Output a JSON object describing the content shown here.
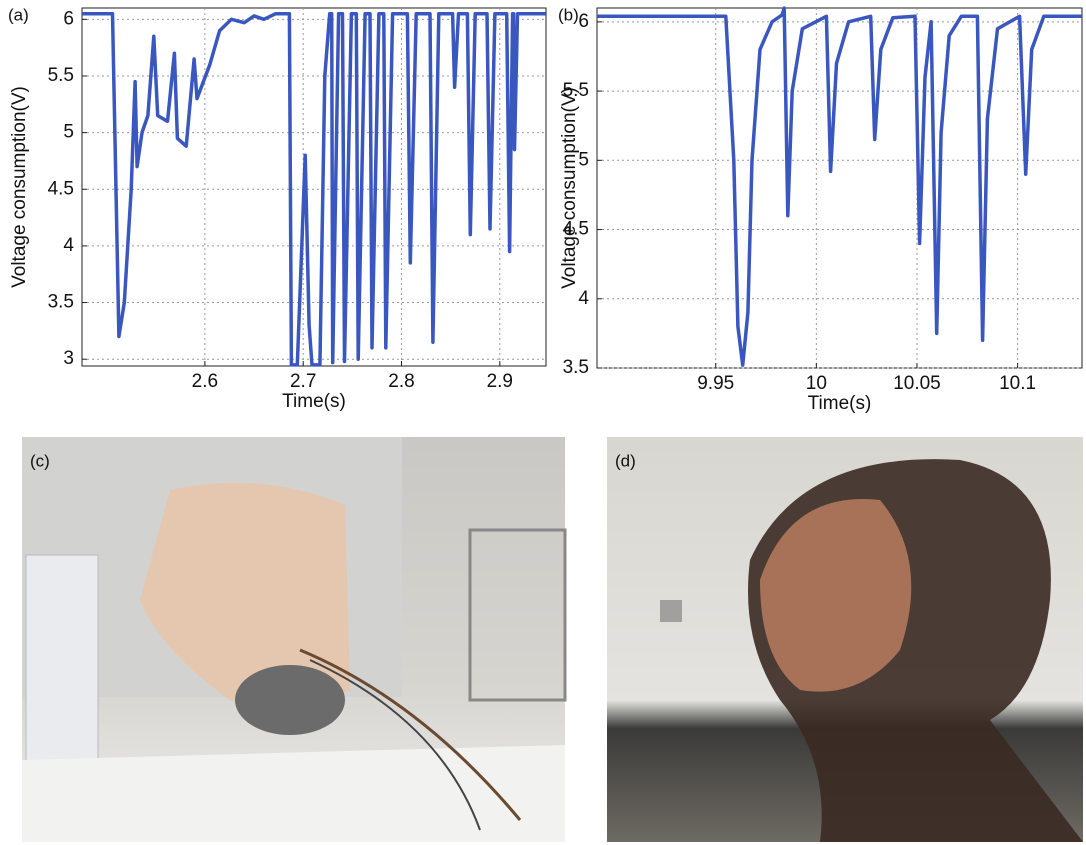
{
  "chart_data": [
    {
      "type": "line",
      "panel_label": "(a)",
      "x_label": "Time(s)",
      "y_label": "Voltage consumption(V)",
      "color": "#3a57c0",
      "grid": true,
      "xlim": [
        2.475,
        2.947
      ],
      "xticks": [
        2.6,
        2.7,
        2.8,
        2.9
      ],
      "ylim": [
        2.94,
        6.1
      ],
      "yticks": [
        3,
        3.5,
        4,
        4.5,
        5,
        5.5,
        6
      ],
      "x": [
        2.475,
        2.506,
        2.5125,
        2.518,
        2.525,
        2.529,
        2.531,
        2.536,
        2.542,
        2.548,
        2.552,
        2.562,
        2.569,
        2.572,
        2.581,
        2.589,
        2.592,
        2.605,
        2.615,
        2.627,
        2.64,
        2.65,
        2.66,
        2.672,
        2.686,
        2.688,
        2.694,
        2.702,
        2.706,
        2.709,
        2.717,
        2.722,
        2.727,
        2.729,
        2.73,
        2.736,
        2.74,
        2.742,
        2.749,
        2.754,
        2.756,
        2.763,
        2.768,
        2.77,
        2.777,
        2.782,
        2.784,
        2.791,
        2.806,
        2.809,
        2.815,
        2.829,
        2.832,
        2.838,
        2.852,
        2.854,
        2.858,
        2.867,
        2.87,
        2.875,
        2.887,
        2.89,
        2.895,
        2.907,
        2.91,
        2.913,
        2.914,
        2.915,
        2.918,
        2.947
      ],
      "values": [
        6.05,
        6.05,
        3.2,
        3.5,
        4.5,
        5.45,
        4.7,
        5.0,
        5.15,
        5.85,
        5.15,
        5.1,
        5.7,
        4.95,
        4.88,
        5.65,
        5.3,
        5.6,
        5.9,
        6.0,
        5.97,
        6.03,
        6.0,
        6.05,
        6.05,
        2.95,
        2.95,
        4.8,
        3.3,
        2.95,
        2.95,
        5.5,
        6.05,
        6.05,
        2.97,
        6.05,
        6.05,
        2.98,
        6.05,
        6.05,
        3.0,
        6.05,
        6.05,
        3.1,
        6.05,
        6.05,
        3.1,
        6.05,
        6.05,
        3.85,
        6.05,
        6.05,
        3.15,
        6.05,
        6.05,
        5.4,
        6.05,
        6.05,
        4.1,
        6.05,
        6.05,
        4.15,
        6.05,
        6.05,
        3.95,
        6.05,
        6.05,
        4.85,
        6.05,
        6.05
      ]
    },
    {
      "type": "line",
      "panel_label": "(b)",
      "x_label": "Time(s)",
      "y_label": "Voltage consumption(V)",
      "color": "#3a57c0",
      "grid": true,
      "xlim": [
        9.891,
        10.132
      ],
      "xticks": [
        9.95,
        10,
        10.05,
        10.1
      ],
      "ylim": [
        3.5,
        6.1
      ],
      "yticks": [
        3.5,
        4,
        4.5,
        5,
        5.5,
        6
      ],
      "x": [
        9.891,
        9.955,
        9.959,
        9.961,
        9.9634,
        9.966,
        9.968,
        9.972,
        9.978,
        9.983,
        9.984,
        9.9858,
        9.988,
        9.993,
        10.005,
        10.0071,
        10.01,
        10.016,
        10.027,
        10.029,
        10.032,
        10.038,
        10.049,
        10.0513,
        10.054,
        10.057,
        10.0598,
        10.062,
        10.066,
        10.072,
        10.08,
        10.0826,
        10.085,
        10.09,
        10.101,
        10.104,
        10.107,
        10.113,
        10.132
      ],
      "values": [
        6.04,
        6.04,
        5.0,
        3.8,
        3.52,
        3.9,
        5.0,
        5.8,
        6.0,
        6.05,
        6.1,
        4.6,
        5.5,
        5.95,
        6.04,
        4.92,
        5.7,
        6.0,
        6.04,
        5.15,
        5.8,
        6.03,
        6.04,
        4.4,
        5.6,
        6.0,
        3.75,
        5.2,
        5.9,
        6.04,
        6.04,
        3.7,
        5.3,
        5.95,
        6.04,
        4.9,
        5.8,
        6.04,
        6.04
      ]
    }
  ],
  "photos": [
    {
      "label": "(c)"
    },
    {
      "label": "(d)"
    }
  ]
}
